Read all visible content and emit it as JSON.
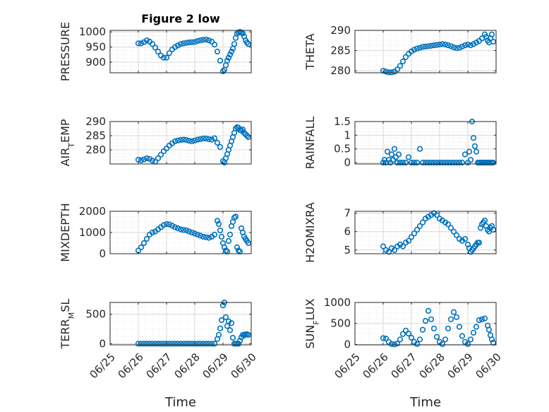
{
  "figure": {
    "title": "Figure 2 low"
  },
  "colors": {
    "marker": "#0072bd",
    "axis": "#262626",
    "grid_major": "#d9d9d9",
    "grid_minor": "#ebebeb"
  },
  "chart_data": [
    {
      "type": "scatter",
      "ylabel": "PRESSURE",
      "ylim": [
        865,
        1005
      ],
      "yticks": [
        900,
        950,
        1000
      ],
      "x": [
        26.0,
        26.1,
        26.2,
        26.3,
        26.4,
        26.5,
        26.6,
        26.7,
        26.8,
        26.9,
        27.0,
        27.1,
        27.2,
        27.3,
        27.4,
        27.5,
        27.6,
        27.7,
        27.8,
        27.9,
        28.0,
        28.1,
        28.2,
        28.3,
        28.4,
        28.5,
        28.6,
        28.7,
        28.8,
        28.9,
        29.0,
        29.05,
        29.1,
        29.15,
        29.2,
        29.25,
        29.3,
        29.35,
        29.4,
        29.45,
        29.5,
        29.55,
        29.6,
        29.65,
        29.7,
        29.75,
        29.8,
        29.85,
        29.9
      ],
      "y": [
        962,
        962,
        966,
        972,
        968,
        960,
        948,
        935,
        922,
        915,
        915,
        930,
        942,
        950,
        955,
        960,
        962,
        964,
        965,
        966,
        967,
        970,
        972,
        974,
        975,
        972,
        968,
        958,
        935,
        905,
        870,
        875,
        890,
        905,
        915,
        925,
        935,
        945,
        960,
        980,
        995,
        998,
        1000,
        998,
        995,
        985,
        972,
        965,
        960
      ]
    },
    {
      "type": "scatter",
      "ylabel": "THETA",
      "ylim": [
        279.5,
        290
      ],
      "yticks": [
        280,
        285,
        290
      ],
      "x": [
        26.0,
        26.1,
        26.2,
        26.3,
        26.4,
        26.5,
        26.6,
        26.7,
        26.8,
        26.9,
        27.0,
        27.1,
        27.2,
        27.3,
        27.4,
        27.5,
        27.6,
        27.7,
        27.8,
        27.9,
        28.0,
        28.1,
        28.2,
        28.3,
        28.4,
        28.5,
        28.6,
        28.7,
        28.8,
        28.9,
        29.0,
        29.1,
        29.2,
        29.3,
        29.4,
        29.5,
        29.6,
        29.65,
        29.7,
        29.75,
        29.8,
        29.85,
        29.9
      ],
      "y": [
        280.0,
        279.8,
        279.6,
        279.6,
        279.8,
        280.3,
        281.2,
        282.3,
        283.4,
        284.2,
        284.8,
        285.2,
        285.5,
        285.7,
        285.9,
        286.0,
        286.1,
        286.2,
        286.3,
        286.4,
        286.5,
        286.6,
        286.5,
        286.3,
        286.1,
        285.8,
        285.6,
        285.7,
        286.0,
        286.3,
        286.5,
        286.3,
        286.6,
        287.0,
        287.4,
        288.0,
        289.0,
        288.4,
        287.5,
        287.0,
        288.0,
        289.0,
        287.2
      ]
    },
    {
      "type": "scatter",
      "ylabel": "AIR_TEMP",
      "ylim": [
        275,
        290
      ],
      "yticks": [
        280,
        285,
        290
      ],
      "x": [
        26.0,
        26.1,
        26.2,
        26.3,
        26.4,
        26.5,
        26.6,
        26.7,
        26.8,
        26.9,
        27.0,
        27.1,
        27.2,
        27.3,
        27.4,
        27.5,
        27.6,
        27.7,
        27.8,
        27.9,
        28.0,
        28.1,
        28.2,
        28.3,
        28.4,
        28.5,
        28.6,
        28.7,
        28.8,
        28.9,
        29.0,
        29.05,
        29.1,
        29.15,
        29.2,
        29.25,
        29.3,
        29.35,
        29.4,
        29.45,
        29.5,
        29.55,
        29.6,
        29.65,
        29.7,
        29.75,
        29.8,
        29.85,
        29.9
      ],
      "y": [
        276.5,
        276.3,
        276.6,
        277.0,
        276.8,
        276.2,
        275.8,
        277.0,
        278.3,
        279.5,
        280.5,
        281.5,
        282.3,
        283.0,
        283.3,
        283.5,
        283.6,
        283.5,
        283.2,
        283.0,
        283.3,
        283.6,
        283.8,
        284.0,
        284.0,
        283.8,
        283.6,
        284.1,
        282.5,
        281.0,
        276.0,
        275.5,
        277.0,
        278.5,
        280.0,
        281.5,
        283.0,
        284.5,
        286.0,
        287.5,
        288.0,
        287.8,
        287.0,
        286.8,
        287.2,
        286.0,
        285.5,
        285.0,
        284.5
      ]
    },
    {
      "type": "scatter",
      "ylabel": "RAINFALL",
      "ylim": [
        -0.05,
        1.5
      ],
      "yticks": [
        0,
        0.5,
        1,
        1.5
      ],
      "x": [
        26.0,
        26.05,
        26.1,
        26.15,
        26.2,
        26.25,
        26.3,
        26.35,
        26.4,
        26.45,
        26.5,
        26.55,
        26.6,
        26.7,
        26.8,
        26.9,
        27.0,
        27.1,
        27.2,
        27.3,
        27.4,
        27.5,
        27.6,
        27.7,
        27.8,
        27.9,
        28.0,
        28.1,
        28.2,
        28.3,
        28.4,
        28.5,
        28.6,
        28.7,
        28.8,
        28.9,
        29.0,
        29.05,
        29.1,
        29.15,
        29.2,
        29.25,
        29.3,
        29.35,
        29.4,
        29.45,
        29.5,
        29.55,
        29.6,
        29.65,
        29.7,
        29.75,
        29.8,
        29.85,
        29.9
      ],
      "y": [
        0.0,
        0.1,
        0.0,
        0.4,
        0.1,
        0.0,
        0.3,
        0.1,
        0.5,
        0.2,
        0.0,
        0.3,
        0.0,
        0.0,
        0.0,
        0.2,
        0.0,
        0.0,
        0.0,
        0.5,
        0.0,
        0.0,
        0.0,
        0.0,
        0.0,
        0.0,
        0.0,
        0.0,
        0.0,
        0.0,
        0.0,
        0.0,
        0.0,
        0.0,
        0.0,
        0.3,
        0.0,
        0.4,
        0.1,
        1.5,
        0.9,
        0.6,
        0.4,
        0.0,
        0.0,
        0.0,
        0.0,
        0.0,
        0.0,
        0.0,
        0.0,
        0.0,
        0.0,
        0.0,
        0.0
      ]
    },
    {
      "type": "scatter",
      "ylabel": "MIXDEPTH",
      "ylim": [
        0,
        2000
      ],
      "yticks": [
        0,
        1000,
        2000
      ],
      "x": [
        26.0,
        26.1,
        26.2,
        26.3,
        26.4,
        26.5,
        26.6,
        26.7,
        26.8,
        26.9,
        27.0,
        27.1,
        27.2,
        27.3,
        27.4,
        27.5,
        27.6,
        27.7,
        27.8,
        27.9,
        28.0,
        28.1,
        28.2,
        28.3,
        28.4,
        28.5,
        28.6,
        28.7,
        28.8,
        28.85,
        28.9,
        28.95,
        29.0,
        29.05,
        29.1,
        29.15,
        29.2,
        29.25,
        29.3,
        29.35,
        29.4,
        29.45,
        29.5,
        29.55,
        29.6,
        29.65,
        29.7,
        29.75,
        29.8,
        29.85,
        29.9
      ],
      "y": [
        150,
        300,
        500,
        700,
        900,
        1000,
        1050,
        1150,
        1250,
        1350,
        1400,
        1380,
        1320,
        1250,
        1200,
        1150,
        1120,
        1100,
        1050,
        1000,
        950,
        900,
        850,
        800,
        780,
        750,
        800,
        900,
        1550,
        1400,
        1100,
        800,
        500,
        300,
        150,
        100,
        600,
        900,
        1300,
        1500,
        1700,
        1750,
        300,
        150,
        100,
        1200,
        1000,
        800,
        700,
        600,
        500
      ]
    },
    {
      "type": "scatter",
      "ylabel": "H2OMIXRA",
      "ylim": [
        4.8,
        7.1
      ],
      "yticks": [
        5,
        6,
        7
      ],
      "x": [
        26.0,
        26.1,
        26.2,
        26.3,
        26.4,
        26.5,
        26.6,
        26.7,
        26.8,
        26.9,
        27.0,
        27.1,
        27.2,
        27.3,
        27.4,
        27.5,
        27.6,
        27.7,
        27.8,
        27.9,
        28.0,
        28.1,
        28.2,
        28.3,
        28.4,
        28.5,
        28.6,
        28.7,
        28.8,
        28.9,
        29.0,
        29.05,
        29.1,
        29.15,
        29.2,
        29.25,
        29.3,
        29.35,
        29.4,
        29.45,
        29.5,
        29.55,
        29.6,
        29.65,
        29.7,
        29.75,
        29.8,
        29.85,
        29.9
      ],
      "y": [
        5.2,
        5.0,
        4.9,
        5.1,
        5.0,
        5.2,
        5.3,
        5.2,
        5.4,
        5.5,
        5.7,
        5.9,
        6.1,
        6.3,
        6.5,
        6.7,
        6.8,
        6.9,
        7.0,
        6.9,
        6.7,
        6.6,
        6.5,
        6.4,
        6.2,
        6.0,
        5.8,
        5.6,
        5.5,
        5.6,
        5.3,
        5.1,
        4.9,
        5.0,
        5.1,
        5.2,
        5.3,
        5.4,
        5.4,
        6.2,
        6.4,
        6.5,
        6.6,
        6.3,
        6.1,
        6.0,
        6.2,
        6.3,
        6.1
      ]
    },
    {
      "type": "scatter",
      "ylabel": "TERR_MSL",
      "ylim": [
        -20,
        700
      ],
      "yticks": [
        0,
        500
      ],
      "x": [
        26.0,
        26.1,
        26.2,
        26.3,
        26.4,
        26.5,
        26.6,
        26.7,
        26.8,
        26.9,
        27.0,
        27.1,
        27.2,
        27.3,
        27.4,
        27.5,
        27.6,
        27.7,
        27.8,
        27.9,
        28.0,
        28.1,
        28.2,
        28.3,
        28.4,
        28.5,
        28.6,
        28.7,
        28.8,
        28.85,
        28.9,
        28.95,
        29.0,
        29.05,
        29.1,
        29.15,
        29.2,
        29.25,
        29.3,
        29.35,
        29.4,
        29.45,
        29.5,
        29.55,
        29.6,
        29.65,
        29.7,
        29.75,
        29.8,
        29.85,
        29.9
      ],
      "y": [
        0,
        0,
        0,
        0,
        0,
        0,
        0,
        0,
        0,
        0,
        0,
        0,
        0,
        0,
        0,
        0,
        0,
        0,
        0,
        0,
        0,
        0,
        0,
        0,
        0,
        0,
        0,
        0,
        80,
        150,
        260,
        400,
        650,
        700,
        450,
        300,
        380,
        230,
        350,
        100,
        0,
        0,
        0,
        0,
        50,
        110,
        150,
        140,
        160,
        160,
        150
      ]
    },
    {
      "type": "scatter",
      "ylabel": "SUN_FLUX",
      "ylim": [
        -10,
        1000
      ],
      "yticks": [
        0,
        500,
        1000
      ],
      "x": [
        26.0,
        26.1,
        26.2,
        26.3,
        26.4,
        26.5,
        26.6,
        26.7,
        26.8,
        26.9,
        27.0,
        27.1,
        27.2,
        27.3,
        27.4,
        27.5,
        27.6,
        27.7,
        27.8,
        27.9,
        28.0,
        28.1,
        28.2,
        28.3,
        28.4,
        28.5,
        28.6,
        28.7,
        28.8,
        28.9,
        29.0,
        29.1,
        29.2,
        29.3,
        29.4,
        29.5,
        29.6,
        29.7,
        29.75,
        29.8,
        29.85,
        29.9
      ],
      "y": [
        150,
        140,
        60,
        10,
        0,
        20,
        120,
        250,
        330,
        260,
        160,
        60,
        10,
        120,
        350,
        560,
        800,
        600,
        380,
        180,
        60,
        10,
        120,
        380,
        600,
        770,
        650,
        420,
        200,
        60,
        10,
        120,
        280,
        420,
        580,
        600,
        620,
        450,
        350,
        220,
        120,
        40
      ]
    }
  ],
  "x_axis": {
    "ticks": [
      25,
      26,
      27,
      28,
      29,
      30
    ],
    "tick_labels": [
      "06/25",
      "06/26",
      "06/27",
      "06/28",
      "06/29",
      "06/30"
    ],
    "xlim": [
      25,
      30
    ],
    "xlabel": "Time"
  }
}
